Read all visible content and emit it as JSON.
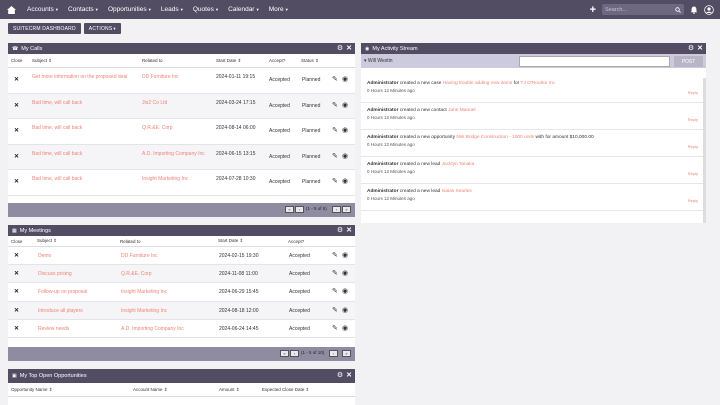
{
  "nav": {
    "items": [
      "Accounts",
      "Contacts",
      "Opportunities",
      "Leads",
      "Quotes",
      "Calendar",
      "More"
    ],
    "search_placeholder": "Search..."
  },
  "actionbar": {
    "dashboard_label": "SUITECRM DASHBOARD",
    "actions_label": "ACTIONS"
  },
  "calls": {
    "title": "My Calls",
    "columns": [
      "Close",
      "Subject",
      "Related to",
      "Start Date",
      "Accept?",
      "Status"
    ],
    "rows": [
      {
        "subject": "Get more information on the proposed deal",
        "related": "DD Furniture Inc",
        "date": "2024-01-11 19:15",
        "accept": "Accepted",
        "status": "Planned"
      },
      {
        "subject": "Bad time, will call back",
        "related": "Jts2 Co Ltd",
        "date": "2024-03-24 17:15",
        "accept": "Accepted",
        "status": "Planned"
      },
      {
        "subject": "Bad time, will call back",
        "related": "Q.R.&E. Corp",
        "date": "2024-08-14 06:00",
        "accept": "Accepted",
        "status": "Planned"
      },
      {
        "subject": "Bad time, will call back",
        "related": "A.D. Importing Company Inc",
        "date": "2024-06-15 13:15",
        "accept": "Accepted",
        "status": "Planned"
      },
      {
        "subject": "Bad time, will call back",
        "related": "Insight Marketing Inc",
        "date": "2024-07-28 10:30",
        "accept": "Accepted",
        "status": "Planned"
      }
    ],
    "pager": "(1 - 5 of 5)"
  },
  "meetings": {
    "title": "My Meetings",
    "columns": [
      "Close",
      "Subject",
      "Related to",
      "Start Date",
      "Accept?"
    ],
    "rows": [
      {
        "subject": "Demo",
        "related": "DD Furniture Inc",
        "date": "2024-02-15 19:30",
        "accept": "Accepted"
      },
      {
        "subject": "Discuss pricing",
        "related": "Q.R.&E. Corp",
        "date": "2024-11-08 11:00",
        "accept": "Accepted"
      },
      {
        "subject": "Follow-up on proposal",
        "related": "Insight Marketing Inc",
        "date": "2024-06-29 15:45",
        "accept": "Accepted"
      },
      {
        "subject": "Introduce all players",
        "related": "Insight Marketing Inc",
        "date": "2024-08-18 12:00",
        "accept": "Accepted"
      },
      {
        "subject": "Review needs",
        "related": "A.D. Importing Company Inc",
        "date": "2024-06-24 14:45",
        "accept": "Accepted"
      }
    ],
    "pager": "(1 - 5 of 10)"
  },
  "opps": {
    "title": "My Top Open Opportunities",
    "columns": [
      "Opportunity Name",
      "Account Name",
      "Amount",
      "Expected Close Date"
    ]
  },
  "activity": {
    "title": "My Activity Stream",
    "user": "Will Westin",
    "post_label": "POST",
    "reply_label": "Reply",
    "items": [
      {
        "actor": "Administrator",
        "verb": " created a new case ",
        "link": "Having trouble adding new items",
        "mid": " for ",
        "link2": "TJ O'Rourke Inc",
        "tail": "",
        "time": "0 Hours 12 Minutes ago"
      },
      {
        "actor": "Administrator",
        "verb": " created a new contact ",
        "link": "Jane Manuel",
        "mid": "",
        "link2": "",
        "tail": "",
        "time": "0 Hours 12 Minutes ago"
      },
      {
        "actor": "Administrator",
        "verb": " created a new opportunity ",
        "link": "NW Bridge Construction - 1000 units",
        "mid": "",
        "link2": "",
        "tail": " with for amount $10,000.00",
        "time": "0 Hours 12 Minutes ago"
      },
      {
        "actor": "Administrator",
        "verb": " created a new lead ",
        "link": "Jacklyn Tanaka",
        "mid": "",
        "link2": "",
        "tail": "",
        "time": "0 Hours 12 Minutes ago"
      },
      {
        "actor": "Administrator",
        "verb": " created a new lead ",
        "link": "Isaias Searles",
        "mid": "",
        "link2": "",
        "tail": "",
        "time": "0 Hours 12 Minutes ago"
      }
    ]
  },
  "colors": {
    "nav": "#534d64",
    "link": "#f08377",
    "pager": "#8f8ca2"
  }
}
